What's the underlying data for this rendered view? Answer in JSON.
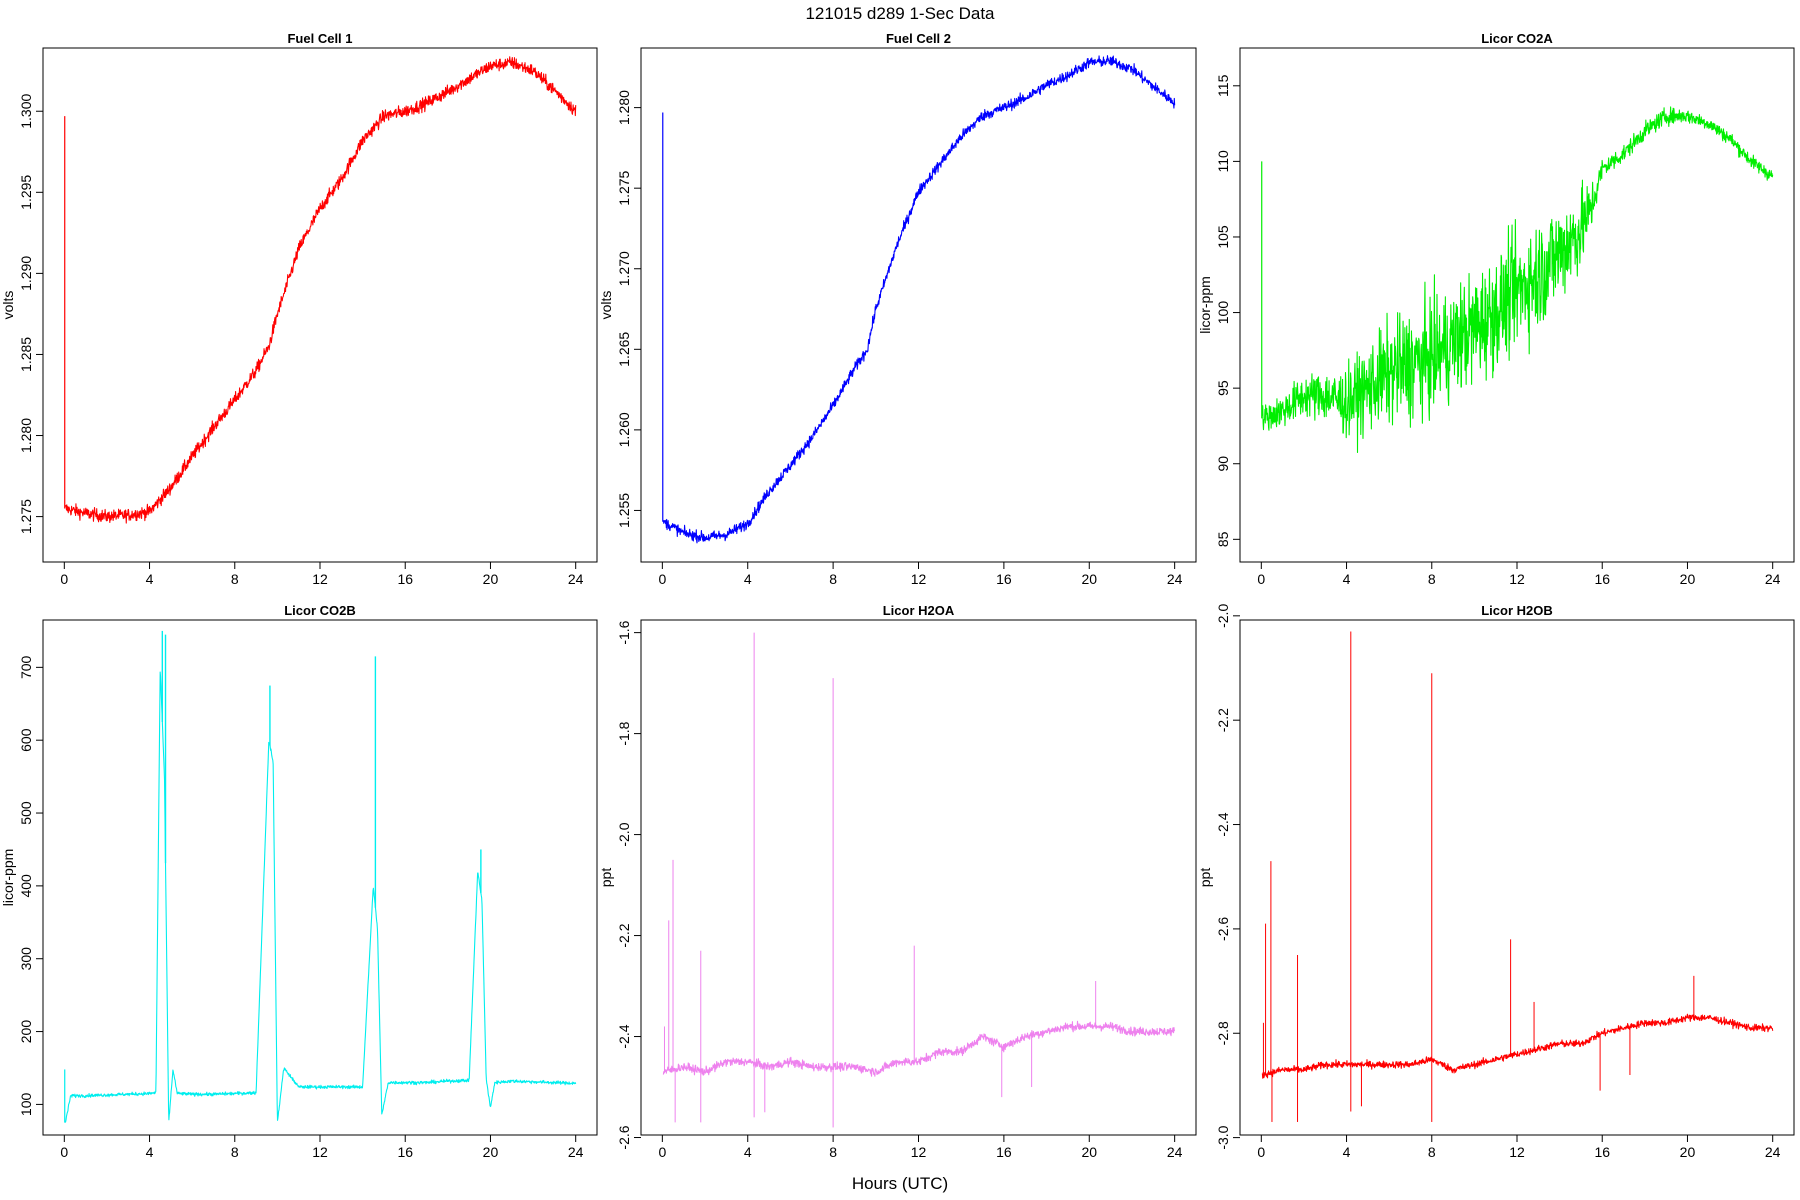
{
  "figure": {
    "title": "121015   d289   1-Sec Data",
    "xlabel": "Hours (UTC)"
  },
  "chart_data": [
    {
      "type": "line",
      "title": "Fuel Cell 1",
      "ylabel": "volts",
      "color": "#ff0000",
      "xlim": [
        -1,
        25
      ],
      "ylim": [
        1.2722,
        1.3039
      ],
      "xticks": [
        0,
        4,
        8,
        12,
        16,
        20,
        24
      ],
      "yticks": [
        1.275,
        1.28,
        1.285,
        1.29,
        1.295,
        1.3
      ],
      "ytick_labels": [
        "1.275",
        "1.280",
        "1.285",
        "1.290",
        "1.295",
        "1.300"
      ],
      "spike": {
        "x": 0.02,
        "ylo": 1.2755,
        "yhi": 1.2997
      },
      "x": [
        0.05,
        1,
        2,
        3,
        4,
        5,
        6,
        7,
        8,
        9,
        9.6,
        10,
        11,
        12,
        13,
        14,
        15,
        16,
        17,
        18,
        19,
        20,
        21,
        22,
        23,
        24
      ],
      "y": [
        1.2755,
        1.2752,
        1.275,
        1.2751,
        1.2753,
        1.2768,
        1.2787,
        1.2805,
        1.2822,
        1.284,
        1.2855,
        1.2875,
        1.2915,
        1.294,
        1.2958,
        1.2982,
        1.2997,
        1.3,
        1.3005,
        1.3012,
        1.302,
        1.3028,
        1.303,
        1.3025,
        1.3013,
        1.3
      ],
      "noise": 0.0007
    },
    {
      "type": "line",
      "title": "Fuel Cell 2",
      "ylabel": "volts",
      "color": "#0000ff",
      "xlim": [
        -1,
        25
      ],
      "ylim": [
        1.2518,
        1.2837
      ],
      "xticks": [
        0,
        4,
        8,
        12,
        16,
        20,
        24
      ],
      "yticks": [
        1.255,
        1.26,
        1.265,
        1.27,
        1.275,
        1.28
      ],
      "ytick_labels": [
        "1.255",
        "1.260",
        "1.265",
        "1.270",
        "1.275",
        "1.280"
      ],
      "spike": {
        "x": 0.02,
        "ylo": 1.2543,
        "yhi": 1.2797
      },
      "x": [
        0.05,
        1,
        2,
        3,
        4,
        5,
        6,
        7,
        8,
        9,
        9.6,
        10,
        11,
        12,
        13,
        14,
        15,
        16,
        17,
        18,
        19,
        20,
        21,
        22,
        23,
        24
      ],
      "y": [
        1.2543,
        1.2536,
        1.2533,
        1.2535,
        1.2542,
        1.2562,
        1.2578,
        1.2595,
        1.2615,
        1.2638,
        1.265,
        1.2675,
        1.2715,
        1.2748,
        1.2765,
        1.2782,
        1.2795,
        1.28,
        1.2806,
        1.2814,
        1.282,
        1.2828,
        1.2829,
        1.2824,
        1.2813,
        1.2803
      ],
      "noise": 0.0006
    },
    {
      "type": "line",
      "title": "Licor CO2A",
      "ylabel": "licor-ppm",
      "color": "#00ee00",
      "xlim": [
        -1,
        25
      ],
      "ylim": [
        83.5,
        117.5
      ],
      "xticks": [
        0,
        4,
        8,
        12,
        16,
        20,
        24
      ],
      "yticks": [
        85,
        90,
        95,
        100,
        105,
        110,
        115
      ],
      "ytick_labels": [
        "85",
        "90",
        "95",
        "100",
        "105",
        "110",
        "115"
      ],
      "spike": {
        "x": 0.02,
        "ylo": 93,
        "yhi": 110
      },
      "x": [
        0.05,
        1,
        2,
        3,
        4,
        5,
        6,
        7,
        8,
        9,
        10,
        11,
        12,
        13,
        14,
        15,
        15.5,
        16,
        17,
        18,
        19,
        20,
        21,
        22,
        23,
        24
      ],
      "y": [
        93,
        93.5,
        94.5,
        94.5,
        94,
        95,
        96,
        96.5,
        97,
        98,
        99,
        100,
        101.5,
        102.5,
        104,
        105.5,
        107,
        109.5,
        110.5,
        112,
        113,
        113,
        112.5,
        111.5,
        110,
        109
      ],
      "noise": [
        1.5,
        2,
        2.5,
        3,
        4,
        5,
        6,
        6.5,
        6.5,
        6.5,
        6.5,
        6.5,
        6.5,
        6.5,
        6,
        5,
        3,
        1.2,
        1,
        1,
        1,
        0.8,
        0.8,
        0.8,
        0.8,
        0.8
      ]
    },
    {
      "type": "line",
      "title": "Licor CO2B",
      "ylabel": "licor-ppm",
      "color": "#00eeee",
      "xlim": [
        -1,
        25
      ],
      "ylim": [
        58,
        765
      ],
      "xticks": [
        0,
        4,
        8,
        12,
        16,
        20,
        24
      ],
      "yticks": [
        100,
        200,
        300,
        400,
        500,
        600,
        700
      ],
      "ytick_labels": [
        "100",
        "200",
        "300",
        "400",
        "500",
        "600",
        "700"
      ],
      "spike": {
        "x": 0.02,
        "ylo": 75,
        "yhi": 148
      },
      "x": [
        0.05,
        0.3,
        1,
        2,
        3,
        4,
        4.3,
        4.5,
        4.7,
        4.9,
        5.1,
        5.3,
        6,
        7,
        8,
        9,
        9.6,
        9.8,
        10,
        10.3,
        11,
        12,
        13,
        14,
        14.5,
        14.7,
        14.9,
        15.2,
        16,
        17,
        18,
        19,
        19.4,
        19.6,
        19.8,
        20,
        20.2,
        21,
        22,
        23,
        24
      ],
      "y": [
        75,
        112,
        112,
        113,
        114,
        115,
        116,
        700,
        550,
        75,
        148,
        115,
        114,
        114,
        115,
        116,
        600,
        570,
        75,
        150,
        124,
        124,
        124,
        124,
        400,
        340,
        85,
        130,
        130,
        130,
        132,
        133,
        420,
        380,
        135,
        95,
        130,
        132,
        131,
        130,
        129
      ],
      "noise": 4,
      "peaks": [
        {
          "x": 4.6,
          "y": 750
        },
        {
          "x": 4.75,
          "y": 745
        },
        {
          "x": 9.65,
          "y": 675
        },
        {
          "x": 14.6,
          "y": 715
        },
        {
          "x": 19.55,
          "y": 450
        }
      ]
    },
    {
      "type": "line",
      "title": "Licor H2OA",
      "ylabel": "ppt",
      "color": "#ee82ee",
      "xlim": [
        -1,
        25
      ],
      "ylim": [
        -2.595,
        -1.575
      ],
      "xticks": [
        0,
        4,
        8,
        12,
        16,
        20,
        24
      ],
      "yticks": [
        -2.6,
        -2.4,
        -2.2,
        -2.0,
        -1.8,
        -1.6
      ],
      "ytick_labels": [
        "-2.6",
        "-2.4",
        "-2.2",
        "-2.0",
        "-1.8",
        "-1.6"
      ],
      "x": [
        0.05,
        1,
        2,
        3,
        4,
        5,
        6,
        7,
        8,
        9,
        10,
        11,
        12,
        13,
        14,
        15,
        16,
        17,
        18,
        19,
        20,
        21,
        22,
        23,
        24
      ],
      "y": [
        -2.47,
        -2.46,
        -2.47,
        -2.45,
        -2.45,
        -2.46,
        -2.45,
        -2.46,
        -2.46,
        -2.46,
        -2.47,
        -2.45,
        -2.45,
        -2.43,
        -2.43,
        -2.4,
        -2.42,
        -2.4,
        -2.39,
        -2.38,
        -2.38,
        -2.38,
        -2.39,
        -2.39,
        -2.39
      ],
      "noise": 0.015,
      "spikes": [
        {
          "x": 0.1,
          "y": -2.38
        },
        {
          "x": 0.3,
          "y": -2.17
        },
        {
          "x": 0.5,
          "y": -2.05
        },
        {
          "x": 1.8,
          "y": -2.23
        },
        {
          "x": 4.3,
          "y": -1.6
        },
        {
          "x": 8.0,
          "y": -1.69
        },
        {
          "x": 11.8,
          "y": -2.22
        },
        {
          "x": 20.3,
          "y": -2.29
        }
      ],
      "dips": [
        {
          "x": 0.6,
          "y": -2.57
        },
        {
          "x": 1.8,
          "y": -2.57
        },
        {
          "x": 4.3,
          "y": -2.56
        },
        {
          "x": 4.8,
          "y": -2.55
        },
        {
          "x": 8.0,
          "y": -2.58
        },
        {
          "x": 15.9,
          "y": -2.52
        },
        {
          "x": 17.3,
          "y": -2.5
        }
      ]
    },
    {
      "type": "line",
      "title": "Licor H2OB",
      "ylabel": "ppt",
      "color": "#ff0000",
      "xlim": [
        -1,
        25
      ],
      "ylim": [
        -2.995,
        -2.008
      ],
      "xticks": [
        0,
        4,
        8,
        12,
        16,
        20,
        24
      ],
      "yticks": [
        -3.0,
        -2.8,
        -2.6,
        -2.4,
        -2.2,
        -2.0
      ],
      "ytick_labels": [
        "-3.0",
        "-2.8",
        "-2.6",
        "-2.4",
        "-2.2",
        "-2.0"
      ],
      "x": [
        0.05,
        1,
        2,
        3,
        4,
        5,
        6,
        7,
        8,
        9,
        10,
        11,
        12,
        13,
        14,
        15,
        16,
        17,
        18,
        19,
        20,
        21,
        22,
        23,
        24
      ],
      "y": [
        -2.88,
        -2.87,
        -2.87,
        -2.86,
        -2.86,
        -2.86,
        -2.86,
        -2.86,
        -2.85,
        -2.87,
        -2.86,
        -2.85,
        -2.84,
        -2.83,
        -2.82,
        -2.82,
        -2.8,
        -2.79,
        -2.78,
        -2.78,
        -2.77,
        -2.77,
        -2.78,
        -2.79,
        -2.79
      ],
      "noise": 0.012,
      "spikes": [
        {
          "x": 0.1,
          "y": -2.78
        },
        {
          "x": 0.2,
          "y": -2.59
        },
        {
          "x": 0.45,
          "y": -2.47
        },
        {
          "x": 1.7,
          "y": -2.65
        },
        {
          "x": 4.2,
          "y": -2.03
        },
        {
          "x": 8.0,
          "y": -2.11
        },
        {
          "x": 11.7,
          "y": -2.62
        },
        {
          "x": 12.8,
          "y": -2.74
        },
        {
          "x": 20.3,
          "y": -2.69
        }
      ],
      "dips": [
        {
          "x": 0.5,
          "y": -2.97
        },
        {
          "x": 1.7,
          "y": -2.97
        },
        {
          "x": 4.2,
          "y": -2.95
        },
        {
          "x": 4.7,
          "y": -2.94
        },
        {
          "x": 8.0,
          "y": -2.97
        },
        {
          "x": 15.9,
          "y": -2.91
        },
        {
          "x": 17.3,
          "y": -2.88
        }
      ]
    }
  ]
}
